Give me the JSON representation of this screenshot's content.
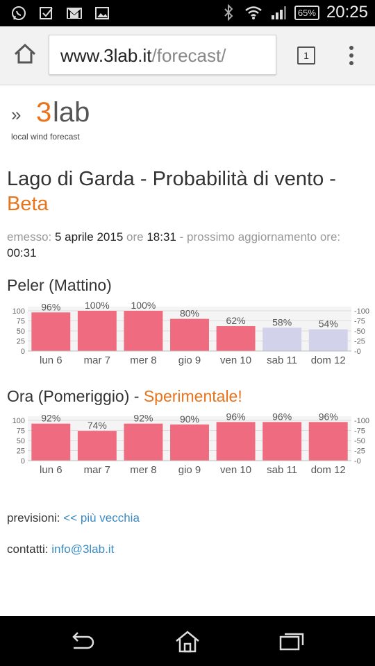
{
  "status_bar": {
    "time": "20:25",
    "battery": "65%",
    "left_icons": [
      "whatsapp-icon",
      "checkbox-icon",
      "gmail-icon",
      "image-icon"
    ],
    "right_icons": [
      "bluetooth-icon",
      "wifi-icon",
      "signal-icon",
      "battery-icon"
    ]
  },
  "browser": {
    "url_host": "www.3lab.it",
    "url_path": "/forecast/",
    "tab_count": "1"
  },
  "logo": {
    "arrows": "»",
    "brand_number": "3",
    "brand_text": "lab",
    "tagline": "local wind forecast"
  },
  "page": {
    "title_main": "Lago di Garda - Probabilità di vento -",
    "title_tag": "Beta",
    "emesso_label": "emesso:",
    "emesso_date": "5 aprile 2015",
    "ore_label": "ore",
    "emesso_time": "18:31",
    "next_update_label": "- prossimo aggiornamento ore:",
    "next_update_time": "00:31"
  },
  "sections": {
    "peler_title": "Peler (Mattino)",
    "ora_title": "Ora (Pomeriggio) -",
    "ora_experimental": "Sperimentale!"
  },
  "chart_data": [
    {
      "type": "bar",
      "title": "Peler (Mattino)",
      "categories": [
        "lun 6",
        "mar 7",
        "mer 8",
        "gio 9",
        "ven 10",
        "sab 11",
        "dom 12"
      ],
      "values": [
        96,
        100,
        100,
        80,
        62,
        58,
        54
      ],
      "value_labels": [
        "96%",
        "100%",
        "100%",
        "80%",
        "62%",
        "58%",
        "54%"
      ],
      "bar_colors": [
        "#ef6c80",
        "#ef6c80",
        "#ef6c80",
        "#ef6c80",
        "#ef6c80",
        "#d2d2ea",
        "#d2d2ea"
      ],
      "yticks": [
        "0",
        "25",
        "50",
        "75",
        "100"
      ],
      "ylim": [
        0,
        100
      ],
      "grid": true
    },
    {
      "type": "bar",
      "title": "Ora (Pomeriggio) - Sperimentale!",
      "categories": [
        "lun 6",
        "mar 7",
        "mer 8",
        "gio 9",
        "ven 10",
        "sab 11",
        "dom 12"
      ],
      "values": [
        92,
        74,
        92,
        90,
        96,
        96,
        96
      ],
      "value_labels": [
        "92%",
        "74%",
        "92%",
        "90%",
        "96%",
        "96%",
        "96%"
      ],
      "bar_colors": [
        "#ef6c80",
        "#ef6c80",
        "#ef6c80",
        "#ef6c80",
        "#ef6c80",
        "#ef6c80",
        "#ef6c80"
      ],
      "yticks": [
        "0",
        "25",
        "50",
        "75",
        "100"
      ],
      "ylim": [
        0,
        100
      ],
      "grid": true
    }
  ],
  "footer_links": {
    "previsioni_label": "previsioni:",
    "previsioni_link": "<< più vecchia",
    "contatti_label": "contatti:",
    "contatti_link": "info@3lab.it"
  },
  "colors": {
    "accent": "#e8731a",
    "link": "#3a8bc4",
    "bar_main": "#ef6c80",
    "bar_low": "#d2d2ea"
  },
  "nav_bar": {
    "buttons": [
      "back-icon",
      "home-icon",
      "recents-icon"
    ]
  }
}
